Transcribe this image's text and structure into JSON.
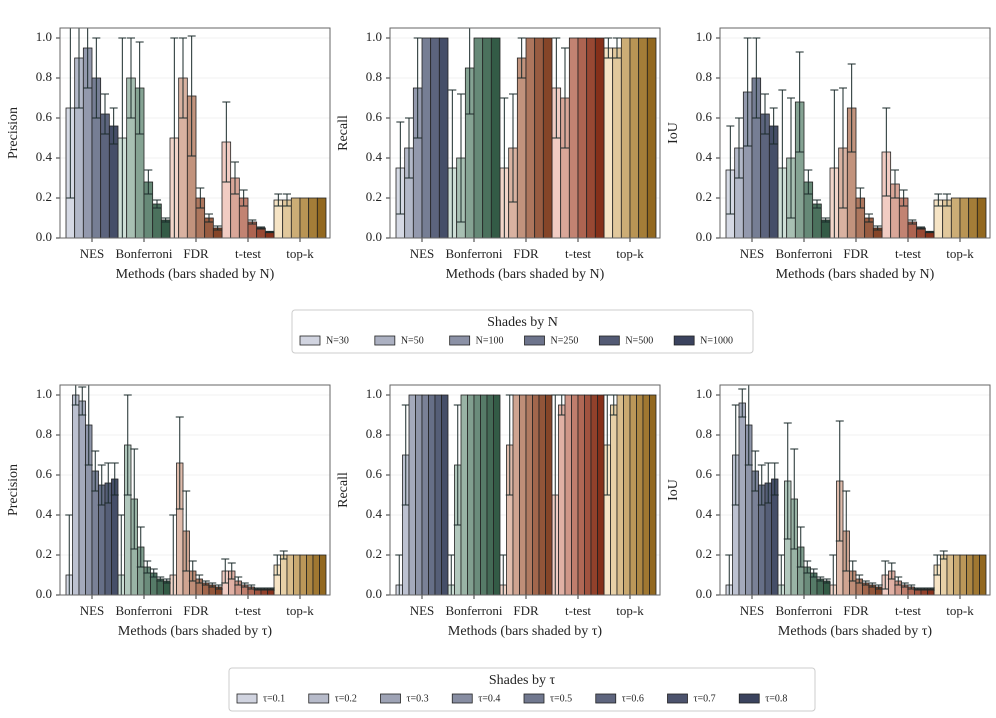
{
  "chart_data": [
    {
      "type": "bar",
      "ylabel": "Precision",
      "xlabel": "Methods (bars shaded by N)",
      "categories": [
        "NES",
        "Bonferroni",
        "FDR",
        "t-test",
        "top-k"
      ],
      "colors": [
        "#6a78a0",
        "#4f8c6c",
        "#cc6a3e",
        "#cc4a28",
        "#e0a030"
      ],
      "ylim": [
        0,
        1.05
      ],
      "yticks": [
        {
          "value": 0,
          "label": "0.0"
        },
        {
          "value": 0.2,
          "label": "0.2"
        },
        {
          "value": 0.4,
          "label": "0.4"
        },
        {
          "value": 0.6,
          "label": "0.6"
        },
        {
          "value": 0.8,
          "label": "0.8"
        },
        {
          "value": 1,
          "label": "1.0"
        }
      ],
      "grid": true,
      "series": [
        {
          "values": [
            0.65,
            0.5,
            0.5,
            0.48,
            0.19
          ],
          "errors": [
            0.45,
            0.5,
            0.5,
            0.2,
            0.03
          ]
        },
        {
          "values": [
            0.9,
            0.8,
            0.8,
            0.3,
            0.19
          ],
          "errors": [
            0.25,
            0.2,
            0.2,
            0.08,
            0.03
          ]
        },
        {
          "values": [
            0.95,
            0.75,
            0.71,
            0.2,
            0.2
          ],
          "errors": [
            0.2,
            0.23,
            0.3,
            0.04,
            0
          ]
        },
        {
          "values": [
            0.8,
            0.28,
            0.2,
            0.08,
            0.2
          ],
          "errors": [
            0.2,
            0.06,
            0.05,
            0.01,
            0
          ]
        },
        {
          "values": [
            0.62,
            0.17,
            0.1,
            0.05,
            0.2
          ],
          "errors": [
            0.1,
            0.02,
            0.02,
            0.005,
            0
          ]
        },
        {
          "values": [
            0.56,
            0.09,
            0.05,
            0.03,
            0.2
          ],
          "errors": [
            0.09,
            0.01,
            0.01,
            0.003,
            0
          ]
        }
      ]
    },
    {
      "type": "bar",
      "ylabel": "Recall",
      "xlabel": "Methods (bars shaded by N)",
      "categories": [
        "NES",
        "Bonferroni",
        "FDR",
        "t-test",
        "top-k"
      ],
      "colors": [
        "#6a78a0",
        "#4f8c6c",
        "#cc6a3e",
        "#cc4a28",
        "#e0a030"
      ],
      "ylim": [
        0,
        1.05
      ],
      "yticks": [
        {
          "value": 0,
          "label": "0.0"
        },
        {
          "value": 0.2,
          "label": "0.2"
        },
        {
          "value": 0.4,
          "label": "0.4"
        },
        {
          "value": 0.6,
          "label": "0.6"
        },
        {
          "value": 0.8,
          "label": "0.8"
        },
        {
          "value": 1,
          "label": "1.0"
        }
      ],
      "grid": true,
      "series": [
        {
          "values": [
            0.35,
            0.35,
            0.35,
            0.75,
            0.95
          ],
          "errors": [
            0.23,
            0.39,
            0.35,
            0.25,
            0.05
          ]
        },
        {
          "values": [
            0.45,
            0.4,
            0.45,
            0.7,
            0.95
          ],
          "errors": [
            0.15,
            0.32,
            0.27,
            0.25,
            0.05
          ]
        },
        {
          "values": [
            0.75,
            0.85,
            0.9,
            1,
            1
          ],
          "errors": [
            0.25,
            0.23,
            0.1,
            0,
            0
          ]
        },
        {
          "values": [
            1,
            1,
            1,
            1,
            1
          ],
          "errors": [
            0,
            0,
            0,
            0,
            0
          ]
        },
        {
          "values": [
            1,
            1,
            1,
            1,
            1
          ],
          "errors": [
            0,
            0,
            0,
            0,
            0
          ]
        },
        {
          "values": [
            1,
            1,
            1,
            1,
            1
          ],
          "errors": [
            0,
            0,
            0,
            0,
            0
          ]
        }
      ]
    },
    {
      "type": "bar",
      "ylabel": "IoU",
      "xlabel": "Methods (bars shaded by N)",
      "categories": [
        "NES",
        "Bonferroni",
        "FDR",
        "t-test",
        "top-k"
      ],
      "colors": [
        "#6a78a0",
        "#4f8c6c",
        "#cc6a3e",
        "#cc4a28",
        "#e0a030"
      ],
      "ylim": [
        0,
        1.05
      ],
      "yticks": [
        {
          "value": 0,
          "label": "0.0"
        },
        {
          "value": 0.2,
          "label": "0.2"
        },
        {
          "value": 0.4,
          "label": "0.4"
        },
        {
          "value": 0.6,
          "label": "0.6"
        },
        {
          "value": 0.8,
          "label": "0.8"
        },
        {
          "value": 1,
          "label": "1.0"
        }
      ],
      "grid": true,
      "series": [
        {
          "values": [
            0.34,
            0.35,
            0.35,
            0.43,
            0.19
          ],
          "errors": [
            0.22,
            0.39,
            0.39,
            0.22,
            0.03
          ]
        },
        {
          "values": [
            0.45,
            0.4,
            0.45,
            0.27,
            0.19
          ],
          "errors": [
            0.15,
            0.3,
            0.3,
            0.07,
            0.03
          ]
        },
        {
          "values": [
            0.73,
            0.68,
            0.65,
            0.2,
            0.2
          ],
          "errors": [
            0.27,
            0.25,
            0.22,
            0.04,
            0
          ]
        },
        {
          "values": [
            0.8,
            0.28,
            0.2,
            0.08,
            0.2
          ],
          "errors": [
            0.2,
            0.06,
            0.05,
            0.01,
            0
          ]
        },
        {
          "values": [
            0.62,
            0.17,
            0.1,
            0.05,
            0.2
          ],
          "errors": [
            0.1,
            0.02,
            0.02,
            0.005,
            0
          ]
        },
        {
          "values": [
            0.56,
            0.09,
            0.05,
            0.03,
            0.2
          ],
          "errors": [
            0.09,
            0.01,
            0.01,
            0.003,
            0
          ]
        }
      ]
    },
    {
      "type": "bar",
      "ylabel": "Precision",
      "xlabel": "Methods (bars shaded by τ)",
      "categories": [
        "NES",
        "Bonferroni",
        "FDR",
        "t-test",
        "top-k"
      ],
      "colors": [
        "#6a78a0",
        "#4f8c6c",
        "#cc6a3e",
        "#cc4a28",
        "#e0a030"
      ],
      "ylim": [
        0,
        1.05
      ],
      "yticks": [
        {
          "value": 0,
          "label": "0.0"
        },
        {
          "value": 0.2,
          "label": "0.2"
        },
        {
          "value": 0.4,
          "label": "0.4"
        },
        {
          "value": 0.6,
          "label": "0.6"
        },
        {
          "value": 0.8,
          "label": "0.8"
        },
        {
          "value": 1,
          "label": "1.0"
        }
      ],
      "grid": true,
      "series": [
        {
          "values": [
            0.1,
            0.1,
            0.1,
            0.12,
            0.15
          ],
          "errors": [
            0.3,
            0.3,
            0.3,
            0.06,
            0.05
          ]
        },
        {
          "values": [
            1,
            0.75,
            0.66,
            0.12,
            0.2
          ],
          "errors": [
            0.05,
            0.25,
            0.23,
            0.04,
            0.02
          ]
        },
        {
          "values": [
            0.97,
            0.48,
            0.32,
            0.07,
            0.2
          ],
          "errors": [
            0.07,
            0.25,
            0.2,
            0.02,
            0
          ]
        },
        {
          "values": [
            0.85,
            0.24,
            0.12,
            0.05,
            0.2
          ],
          "errors": [
            0.2,
            0.1,
            0.05,
            0.01,
            0
          ]
        },
        {
          "values": [
            0.62,
            0.14,
            0.08,
            0.04,
            0.2
          ],
          "errors": [
            0.1,
            0.03,
            0.02,
            0.01,
            0
          ]
        },
        {
          "values": [
            0.55,
            0.11,
            0.06,
            0.03,
            0.2
          ],
          "errors": [
            0.1,
            0.02,
            0.01,
            0.005,
            0
          ]
        },
        {
          "values": [
            0.56,
            0.08,
            0.05,
            0.03,
            0.2
          ],
          "errors": [
            0.1,
            0.01,
            0.01,
            0.005,
            0
          ]
        },
        {
          "values": [
            0.58,
            0.07,
            0.04,
            0.03,
            0.2
          ],
          "errors": [
            0.08,
            0.01,
            0.01,
            0.005,
            0
          ]
        }
      ]
    },
    {
      "type": "bar",
      "ylabel": "Recall",
      "xlabel": "Methods (bars shaded by τ)",
      "categories": [
        "NES",
        "Bonferroni",
        "FDR",
        "t-test",
        "top-k"
      ],
      "colors": [
        "#6a78a0",
        "#4f8c6c",
        "#cc6a3e",
        "#cc4a28",
        "#e0a030"
      ],
      "ylim": [
        0,
        1.05
      ],
      "yticks": [
        {
          "value": 0,
          "label": "0.0"
        },
        {
          "value": 0.2,
          "label": "0.2"
        },
        {
          "value": 0.4,
          "label": "0.4"
        },
        {
          "value": 0.6,
          "label": "0.6"
        },
        {
          "value": 0.8,
          "label": "0.8"
        },
        {
          "value": 1,
          "label": "1.0"
        }
      ],
      "grid": true,
      "series": [
        {
          "values": [
            0.05,
            0.05,
            0.05,
            0.5,
            0.75
          ],
          "errors": [
            0.15,
            0.15,
            0.15,
            0.5,
            0.25
          ]
        },
        {
          "values": [
            0.7,
            0.65,
            0.75,
            0.95,
            0.95
          ],
          "errors": [
            0.25,
            0.3,
            0.25,
            0.05,
            0.05
          ]
        },
        {
          "values": [
            1,
            1,
            1,
            1,
            1
          ],
          "errors": [
            0,
            0,
            0,
            0,
            0
          ]
        },
        {
          "values": [
            1,
            1,
            1,
            1,
            1
          ],
          "errors": [
            0,
            0,
            0,
            0,
            0
          ]
        },
        {
          "values": [
            1,
            1,
            1,
            1,
            1
          ],
          "errors": [
            0,
            0,
            0,
            0,
            0
          ]
        },
        {
          "values": [
            1,
            1,
            1,
            1,
            1
          ],
          "errors": [
            0,
            0,
            0,
            0,
            0
          ]
        },
        {
          "values": [
            1,
            1,
            1,
            1,
            1
          ],
          "errors": [
            0,
            0,
            0,
            0,
            0
          ]
        },
        {
          "values": [
            1,
            1,
            1,
            1,
            1
          ],
          "errors": [
            0,
            0,
            0,
            0,
            0
          ]
        }
      ]
    },
    {
      "type": "bar",
      "ylabel": "IoU",
      "xlabel": "Methods (bars shaded by τ)",
      "categories": [
        "NES",
        "Bonferroni",
        "FDR",
        "t-test",
        "top-k"
      ],
      "colors": [
        "#6a78a0",
        "#4f8c6c",
        "#cc6a3e",
        "#cc4a28",
        "#e0a030"
      ],
      "ylim": [
        0,
        1.05
      ],
      "yticks": [
        {
          "value": 0,
          "label": "0.0"
        },
        {
          "value": 0.2,
          "label": "0.2"
        },
        {
          "value": 0.4,
          "label": "0.4"
        },
        {
          "value": 0.6,
          "label": "0.6"
        },
        {
          "value": 0.8,
          "label": "0.8"
        },
        {
          "value": 1,
          "label": "1.0"
        }
      ],
      "grid": true,
      "series": [
        {
          "values": [
            0.05,
            0.05,
            0.05,
            0.1,
            0.15
          ],
          "errors": [
            0.15,
            0.15,
            0.15,
            0.07,
            0.05
          ]
        },
        {
          "values": [
            0.7,
            0.57,
            0.57,
            0.12,
            0.2
          ],
          "errors": [
            0.25,
            0.29,
            0.3,
            0.04,
            0.02
          ]
        },
        {
          "values": [
            0.96,
            0.48,
            0.32,
            0.07,
            0.2
          ],
          "errors": [
            0.07,
            0.25,
            0.2,
            0.02,
            0
          ]
        },
        {
          "values": [
            0.85,
            0.24,
            0.12,
            0.05,
            0.2
          ],
          "errors": [
            0.2,
            0.1,
            0.05,
            0.01,
            0
          ]
        },
        {
          "values": [
            0.62,
            0.14,
            0.08,
            0.04,
            0.2
          ],
          "errors": [
            0.1,
            0.03,
            0.02,
            0.01,
            0
          ]
        },
        {
          "values": [
            0.55,
            0.11,
            0.06,
            0.03,
            0.2
          ],
          "errors": [
            0.1,
            0.02,
            0.01,
            0.005,
            0
          ]
        },
        {
          "values": [
            0.56,
            0.08,
            0.05,
            0.03,
            0.2
          ],
          "errors": [
            0.1,
            0.01,
            0.01,
            0.005,
            0
          ]
        },
        {
          "values": [
            0.58,
            0.07,
            0.04,
            0.03,
            0.2
          ],
          "errors": [
            0.08,
            0.01,
            0.01,
            0.005,
            0
          ]
        }
      ]
    }
  ],
  "legends": [
    {
      "title": "Shades by N",
      "color": "#5b6791",
      "labels": [
        "N=30",
        "N=50",
        "N=100",
        "N=250",
        "N=500",
        "N=1000"
      ]
    },
    {
      "title": "Shades by τ",
      "color": "#5b6791",
      "labels": [
        "τ=0.1",
        "τ=0.2",
        "τ=0.3",
        "τ=0.4",
        "τ=0.5",
        "τ=0.6",
        "τ=0.7",
        "τ=0.8"
      ]
    }
  ]
}
